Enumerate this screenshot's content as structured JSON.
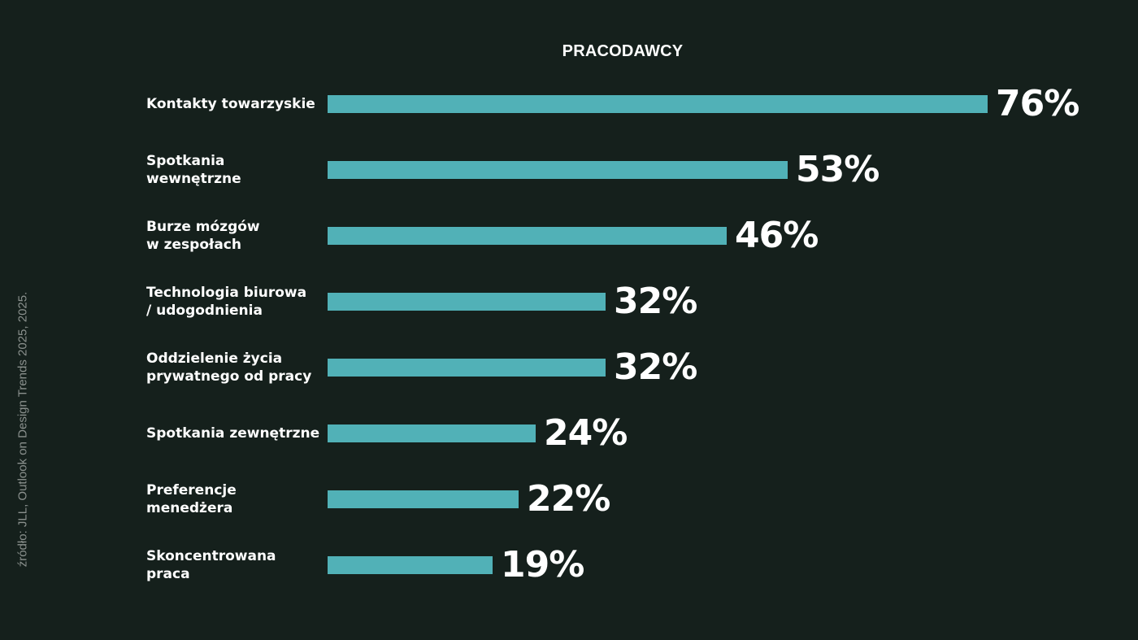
{
  "chart_data": {
    "type": "bar",
    "orientation": "horizontal",
    "title": "PRACODAWCY",
    "categories": [
      "Kontakty towarzyskie",
      "Spotkania wewnętrzne",
      "Burze mózgów\nw zespołach",
      "Technologia biurowa\n / udogodnienia",
      "Oddzielenie życia\nprywatnego od pracy",
      "Spotkania zewnętrzne",
      "Preferencje menedżera",
      "Skoncentrowana praca"
    ],
    "values": [
      76,
      53,
      46,
      32,
      32,
      24,
      22,
      19
    ],
    "value_labels": [
      "76%",
      "53%",
      "46%",
      "32%",
      "32%",
      "24%",
      "22%",
      "19%"
    ],
    "xlim": [
      0,
      76
    ],
    "legend": "none",
    "grid": false
  },
  "source": "źródło: JLL, Outlook on Design Trends 2025, 2025.",
  "colors": {
    "background": "#15201c",
    "bar": "#51b1b7",
    "text": "#ffffff",
    "source_text": "#8b918e"
  }
}
